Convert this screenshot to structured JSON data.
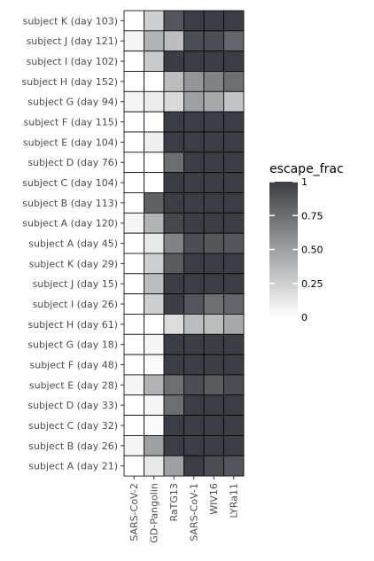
{
  "chart_data": {
    "type": "heatmap",
    "columns": [
      "SARS-CoV-2",
      "GD-Pangolin",
      "RaTG13",
      "SARS-CoV-1",
      "WIV16",
      "LYRa11"
    ],
    "rows": [
      "subject K (day 103)",
      "subject J (day 121)",
      "subject I (day 102)",
      "subject H (day 152)",
      "subject G (day 94)",
      "subject F (day 115)",
      "subject E (day 104)",
      "subject D (day 76)",
      "subject C (day 104)",
      "subject B (day 113)",
      "subject A (day 120)",
      "subject A (day 45)",
      "subject K (day 29)",
      "subject J (day 15)",
      "subject I (day 26)",
      "subject H (day 61)",
      "subject G (day 18)",
      "subject F (day 48)",
      "subject E (day 28)",
      "subject D (day 33)",
      "subject C (day 32)",
      "subject B (day 26)",
      "subject A (day 21)"
    ],
    "values": [
      [
        0.0,
        0.25,
        0.88,
        1.0,
        1.0,
        1.0
      ],
      [
        0.05,
        0.4,
        0.35,
        0.92,
        0.92,
        0.8
      ],
      [
        0.0,
        0.28,
        1.0,
        1.0,
        1.0,
        1.0
      ],
      [
        0.0,
        0.0,
        0.35,
        0.55,
        0.65,
        0.75
      ],
      [
        0.05,
        0.1,
        0.2,
        0.5,
        0.45,
        0.3
      ],
      [
        0.0,
        0.0,
        1.0,
        1.0,
        1.0,
        1.0
      ],
      [
        0.0,
        0.08,
        1.0,
        1.0,
        1.0,
        1.0
      ],
      [
        0.0,
        0.0,
        0.75,
        1.0,
        1.0,
        1.0
      ],
      [
        0.0,
        0.0,
        1.0,
        1.0,
        1.0,
        1.0
      ],
      [
        0.0,
        0.82,
        1.0,
        1.0,
        1.0,
        1.0
      ],
      [
        0.05,
        0.4,
        0.95,
        1.0,
        1.0,
        1.0
      ],
      [
        0.0,
        0.12,
        0.65,
        0.92,
        0.88,
        0.88
      ],
      [
        0.0,
        0.25,
        0.85,
        1.0,
        1.0,
        1.0
      ],
      [
        0.0,
        0.35,
        1.0,
        1.0,
        1.0,
        1.0
      ],
      [
        0.0,
        0.25,
        1.0,
        0.88,
        0.75,
        0.8
      ],
      [
        0.0,
        0.0,
        0.18,
        0.35,
        0.35,
        0.45
      ],
      [
        0.0,
        0.05,
        1.0,
        1.0,
        1.0,
        1.0
      ],
      [
        0.0,
        0.02,
        1.0,
        1.0,
        1.0,
        1.0
      ],
      [
        0.05,
        0.4,
        0.75,
        0.92,
        0.85,
        0.92
      ],
      [
        0.0,
        0.05,
        0.75,
        1.0,
        1.0,
        1.0
      ],
      [
        0.0,
        0.02,
        1.0,
        1.0,
        1.0,
        1.0
      ],
      [
        0.05,
        0.5,
        1.0,
        1.0,
        1.0,
        1.0
      ],
      [
        0.0,
        0.12,
        0.5,
        1.0,
        0.92,
        0.88
      ]
    ],
    "legend": {
      "title": "escape_frac",
      "ticks": [
        {
          "value": 0,
          "label": "0"
        },
        {
          "value": 0.25,
          "label": "0.25"
        },
        {
          "value": 0.5,
          "label": "0.50"
        },
        {
          "value": 0.75,
          "label": "0.75"
        },
        {
          "value": 1,
          "label": "1"
        }
      ],
      "placement": "right"
    },
    "color_low": "#ffffff",
    "color_high": "#3b3f43",
    "range": [
      0,
      1
    ]
  }
}
